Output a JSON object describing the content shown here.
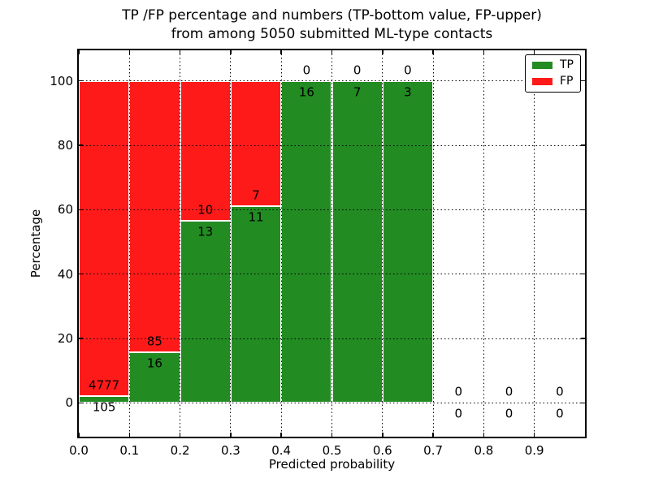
{
  "title": {
    "line1": "TP /FP percentage and numbers (TP-bottom value, FP-upper)",
    "line2": "from among 5050 submitted ML-type contacts"
  },
  "axes": {
    "xlabel": "Predicted probability",
    "ylabel": "Percentage",
    "xticks": [
      "0.0",
      "0.1",
      "0.2",
      "0.3",
      "0.4",
      "0.5",
      "0.6",
      "0.7",
      "0.8",
      "0.9"
    ],
    "yticks": [
      "0",
      "20",
      "40",
      "60",
      "80",
      "100"
    ]
  },
  "legend": {
    "items": [
      {
        "label": "TP",
        "color": "#228b22"
      },
      {
        "label": "FP",
        "color": "#ff1a1a"
      }
    ]
  },
  "chart_data": {
    "type": "bar",
    "stacked": true,
    "title": "TP /FP percentage and numbers (TP-bottom value, FP-upper) from among 5050 submitted ML-type contacts",
    "xlabel": "Predicted probability",
    "ylabel": "Percentage",
    "xlim": [
      0,
      1
    ],
    "ylim": [
      -10.5,
      109.5
    ],
    "grid": true,
    "legend_position": "upper right",
    "bin_width": 0.1,
    "bin_starts": [
      0.0,
      0.1,
      0.2,
      0.3,
      0.4,
      0.5,
      0.6,
      0.7,
      0.8,
      0.9
    ],
    "series": [
      {
        "name": "TP",
        "color": "#228b22",
        "counts": [
          105,
          16,
          13,
          11,
          16,
          7,
          3,
          0,
          0,
          0
        ]
      },
      {
        "name": "FP",
        "color": "#ff1a1a",
        "counts": [
          4777,
          85,
          10,
          7,
          0,
          0,
          0,
          0,
          0,
          0
        ]
      }
    ],
    "bars_show_percent_of_bin_total": true,
    "tp_percent_by_bin": [
      2.15,
      15.84,
      56.52,
      61.11,
      100,
      100,
      100,
      null,
      null,
      null
    ]
  }
}
